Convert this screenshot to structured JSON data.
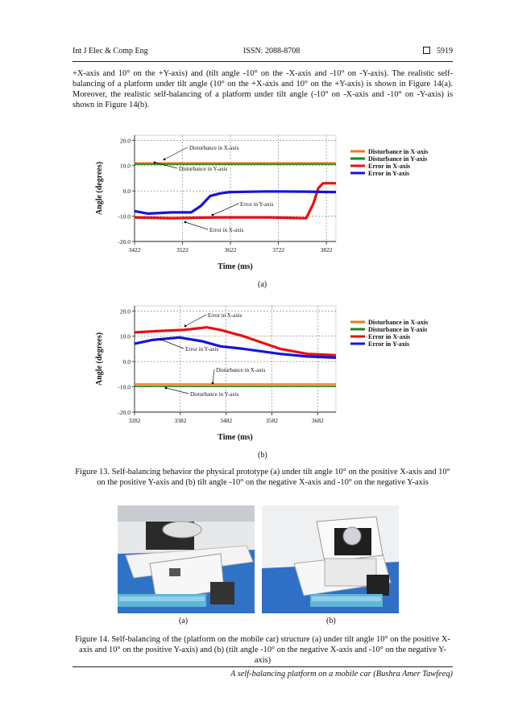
{
  "header": {
    "journal": "Int J Elec & Comp Eng",
    "issn": "ISSN: 2088-8708",
    "page": "5919"
  },
  "paragraph": "+X-axis and 10° on the +Y-axis) and (tilt angle -10° on the -X-axis and -10° on -Y-axis). The realistic self-balancing of a platform under tilt angle (10° on the +X-axis and 10° on the +Y-axis) is shown in Figure 14(a). Moreover, the realistic self-balancing of a platform under tilt angle (-10° on -X-axis and -10° on -Y-axis) is shown in Figure 14(b).",
  "colors": {
    "disturbance_x": "#f07820",
    "disturbance_y": "#1a8a1a",
    "error_x": "#e81010",
    "error_y": "#1515d8"
  },
  "chart_data": [
    {
      "type": "line",
      "panel": "(a)",
      "xlabel": "Time (ms)",
      "ylabel": "Angle (degrees)",
      "xticks": [
        "3422",
        "3522",
        "3622",
        "3722",
        "3822"
      ],
      "yticks": [
        "20.0",
        "10.0",
        "0.0",
        "-10.0",
        "-20.0"
      ],
      "xlim": [
        3422,
        3842
      ],
      "ylim": [
        -20,
        22
      ],
      "grid": true,
      "legend_position": "right",
      "series": [
        {
          "name": "Disturbance in X-axis",
          "x": [
            3422,
            3842
          ],
          "y": [
            11,
            11
          ]
        },
        {
          "name": "Disturbance in Y-axis",
          "x": [
            3422,
            3842
          ],
          "y": [
            10.5,
            10.5
          ]
        },
        {
          "name": "Error in X-axis",
          "x": [
            3422,
            3500,
            3600,
            3700,
            3780,
            3795,
            3805,
            3815,
            3842
          ],
          "y": [
            -10.5,
            -10.8,
            -10.5,
            -10.5,
            -10.8,
            -5,
            1,
            3,
            3
          ]
        },
        {
          "name": "Error in Y-axis",
          "x": [
            3422,
            3450,
            3500,
            3540,
            3560,
            3580,
            3600,
            3620,
            3700,
            3780,
            3842
          ],
          "y": [
            -8,
            -9,
            -8.5,
            -8.5,
            -6,
            -2,
            -1,
            -0.5,
            -0.2,
            -0.3,
            -0.5
          ]
        }
      ],
      "annotations": [
        "Disturbance in X-axis",
        "Disturbance in Y-axis",
        "Error in Y-axis",
        "Error in X-axis"
      ]
    },
    {
      "type": "line",
      "panel": "(b)",
      "xlabel": "Time (ms)",
      "ylabel": "Angle (degrees)",
      "xticks": [
        "3282",
        "3382",
        "3482",
        "3582",
        "3682"
      ],
      "yticks": [
        "20.0",
        "10.0",
        "0.0",
        "-10.0",
        "-20.0"
      ],
      "xlim": [
        3282,
        3722
      ],
      "ylim": [
        -20,
        22
      ],
      "grid": true,
      "legend_position": "right",
      "series": [
        {
          "name": "Disturbance in X-axis",
          "x": [
            3282,
            3722
          ],
          "y": [
            -9,
            -9
          ]
        },
        {
          "name": "Disturbance in Y-axis",
          "x": [
            3282,
            3722
          ],
          "y": [
            -9.8,
            -9.8
          ]
        },
        {
          "name": "Error in X-axis",
          "x": [
            3282,
            3330,
            3390,
            3440,
            3470,
            3520,
            3600,
            3660,
            3722
          ],
          "y": [
            11.5,
            12,
            12.5,
            13.5,
            12.5,
            10,
            5,
            3,
            2.5
          ]
        },
        {
          "name": "Error in Y-axis",
          "x": [
            3282,
            3320,
            3380,
            3430,
            3470,
            3520,
            3600,
            3660,
            3722
          ],
          "y": [
            7,
            8.5,
            9.5,
            8,
            6,
            5,
            3,
            2,
            1.5
          ]
        }
      ],
      "annotations": [
        "Error in X-axis",
        "Error in Y-axis",
        "Disturbance in X-axis",
        "Disturbance in Y-axis"
      ]
    }
  ],
  "fig13": {
    "label_a": "(a)",
    "label_b": "(b)",
    "caption": "Figure 13. Self-balancing behavior the physical prototype (a) under tilt angle 10° on the positive X-axis and 10° on the positive Y-axis and (b) tilt angle -10° on the negative X-axis and -10° on the negative Y-axis"
  },
  "fig14": {
    "label_a": "(a)",
    "label_b": "(b)",
    "caption": "Figure 14. Self-balancing of the (platform on the mobile car) structure (a) under tilt angle 10° on the positive X-axis and 10° on the positive Y-axis) and (b) (tilt angle -10° on the negative X-axis and -10° on the negative Y-axis)"
  },
  "footer": "A self-balancing platform on a mobile car (Bushra Amer Tawfeeq)"
}
